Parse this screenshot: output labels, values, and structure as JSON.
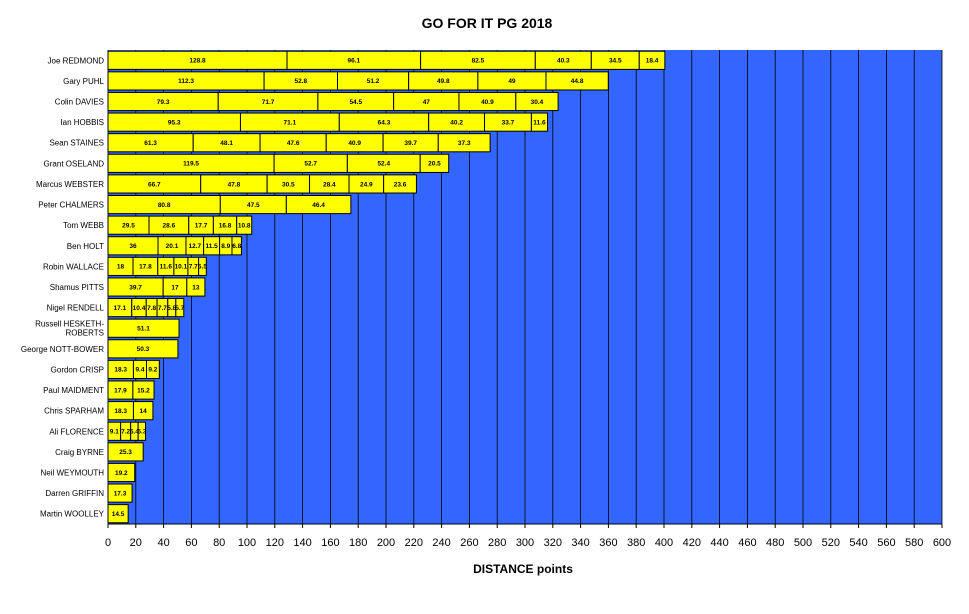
{
  "chart_data": {
    "type": "bar",
    "orientation": "horizontal",
    "stacked": true,
    "title": "GO FOR IT PG 2018",
    "xlabel": "DISTANCE points",
    "ylabel": "",
    "xlim": [
      0,
      600
    ],
    "xticks": [
      0,
      20,
      40,
      60,
      80,
      100,
      120,
      140,
      160,
      180,
      200,
      220,
      240,
      260,
      280,
      300,
      320,
      340,
      360,
      380,
      400,
      420,
      440,
      460,
      480,
      500,
      520,
      540,
      560,
      580,
      600
    ],
    "grid": "vertical",
    "colors": {
      "plot_background": "#3366ff",
      "bar_fill": "#ffff00",
      "bar_stroke": "#000000",
      "gridline": "#000000"
    },
    "categories": [
      {
        "name": "Joe REDMOND",
        "values": [
          128.8,
          96.1,
          82.5,
          40.3,
          34.5,
          18.4
        ]
      },
      {
        "name": "Gary PUHL",
        "values": [
          112.3,
          52.8,
          51.2,
          49.8,
          49.0,
          44.8
        ]
      },
      {
        "name": "Colin DAVIES",
        "values": [
          79.3,
          71.7,
          54.5,
          47,
          40.9,
          30.4
        ]
      },
      {
        "name": "Ian HOBBIS",
        "values": [
          95.3,
          71.1,
          64.3,
          40.2,
          33.7,
          11.6
        ]
      },
      {
        "name": "Sean STAINES",
        "values": [
          61.3,
          48.1,
          47.6,
          40.9,
          39.7,
          37.3
        ]
      },
      {
        "name": "Grant OSELAND",
        "values": [
          119.5,
          52.7,
          52.4,
          20.5
        ]
      },
      {
        "name": "Marcus WEBSTER",
        "values": [
          66.7,
          47.8,
          30.5,
          28.4,
          24.9,
          23.6
        ]
      },
      {
        "name": "Peter CHALMERS",
        "values": [
          80.8,
          47.5,
          46.4
        ]
      },
      {
        "name": "Tom WEBB",
        "values": [
          29.5,
          28.6,
          17.7,
          16.8,
          10.8
        ]
      },
      {
        "name": "Ben HOLT",
        "values": [
          36.0,
          20.1,
          12.7,
          11.5,
          8.9,
          6.8
        ]
      },
      {
        "name": "Robin WALLACE",
        "values": [
          18,
          17.8,
          11.6,
          10.1,
          7.7,
          5.5
        ]
      },
      {
        "name": "Shamus PITTS",
        "values": [
          39.7,
          17.0,
          13.0
        ]
      },
      {
        "name": "Nigel RENDELL",
        "values": [
          17.1,
          10.4,
          7.8,
          7.7,
          5.8,
          5.7
        ]
      },
      {
        "name": "Russell HESKETH-ROBERTS",
        "lines": [
          "Russell HESKETH-",
          "ROBERTS"
        ],
        "values": [
          51.1
        ]
      },
      {
        "name": "George NOTT-BOWER",
        "values": [
          50.3
        ]
      },
      {
        "name": "Gordon CRISP",
        "values": [
          18.3,
          9.4,
          9.2
        ]
      },
      {
        "name": "Paul MAIDMENT",
        "values": [
          17.9,
          15.2
        ]
      },
      {
        "name": "Chris SPARHAM",
        "values": [
          18.3,
          14
        ]
      },
      {
        "name": "Ali FLORENCE",
        "values": [
          9.1,
          7.2,
          5.4,
          5.3
        ]
      },
      {
        "name": "Craig BYRNE",
        "values": [
          25.3
        ]
      },
      {
        "name": "Neil WEYMOUTH",
        "values": [
          19.2
        ]
      },
      {
        "name": "Darren GRIFFIN",
        "values": [
          17.3
        ]
      },
      {
        "name": "Martin WOOLLEY",
        "values": [
          14.5
        ]
      }
    ]
  }
}
